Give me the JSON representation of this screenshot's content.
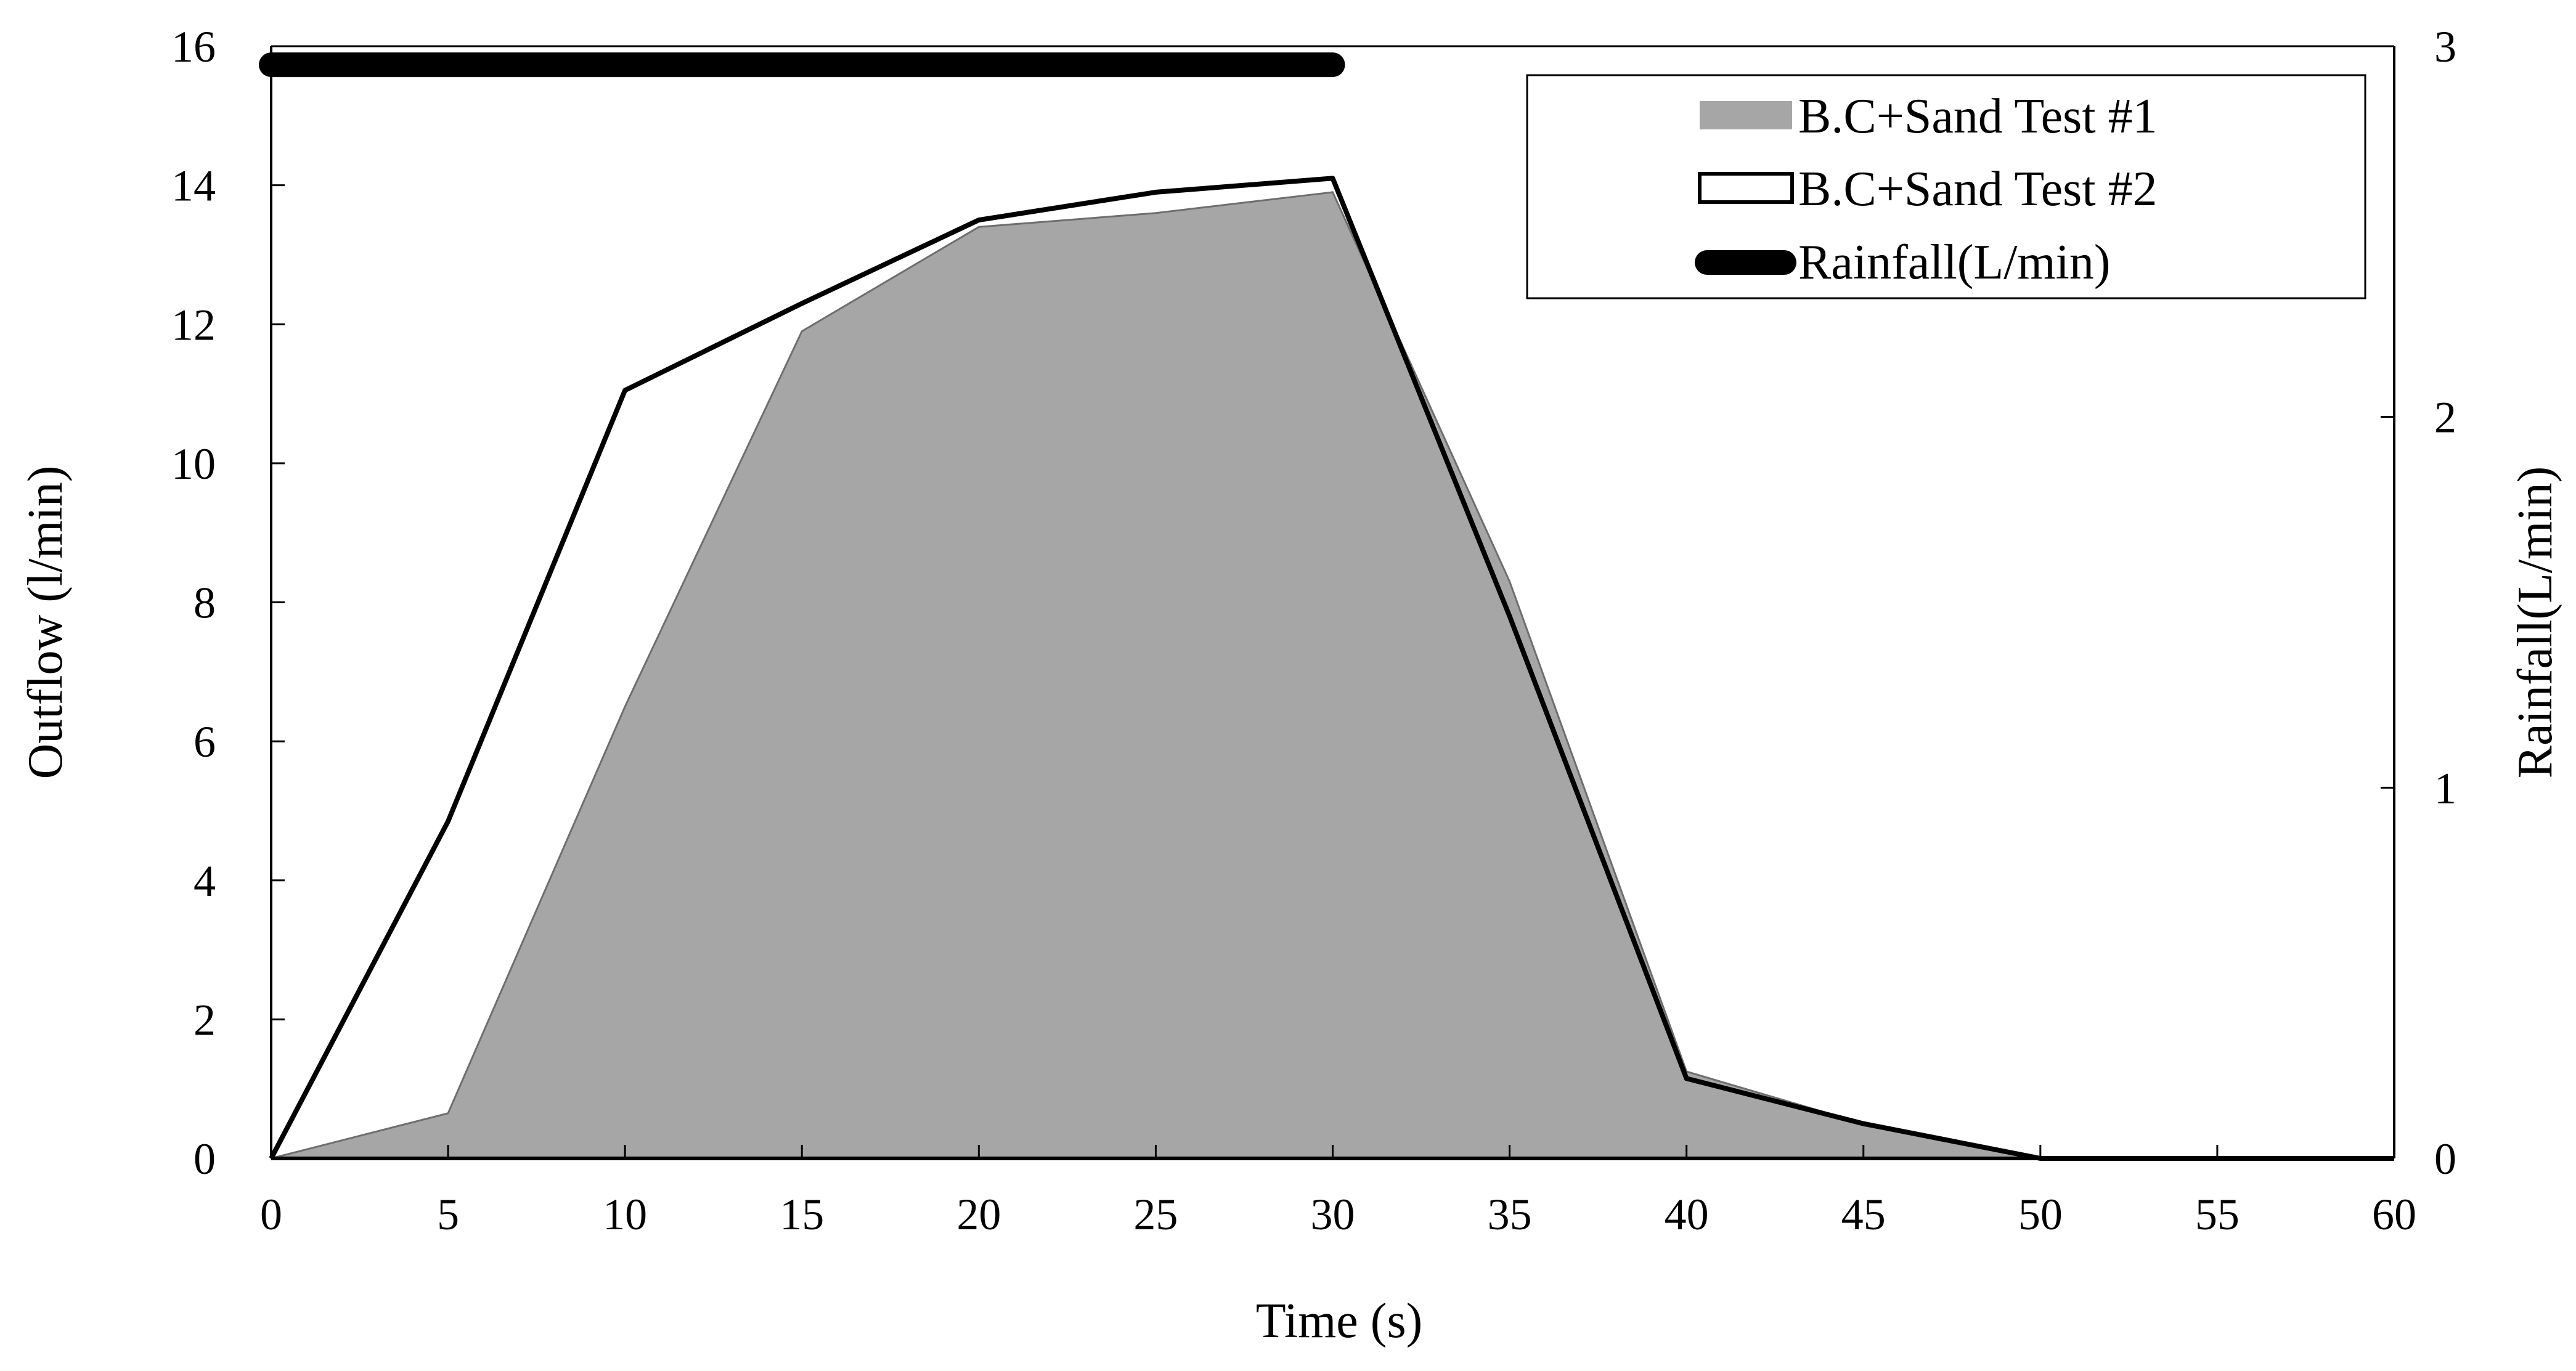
{
  "chart_data": {
    "type": "area",
    "title": "",
    "xlabel": "Time (s)",
    "ylabel": "Outflow (l/min)",
    "y2label": "Rainfall(L/min)",
    "xlim": [
      0,
      60
    ],
    "ylim": [
      0,
      16
    ],
    "y2lim": [
      0,
      3
    ],
    "x_ticks": [
      "0",
      "5",
      "10",
      "15",
      "20",
      "25",
      "30",
      "35",
      "40",
      "45",
      "50",
      "55",
      "60"
    ],
    "y_ticks": [
      "0",
      "2",
      "4",
      "6",
      "8",
      "10",
      "12",
      "14",
      "16"
    ],
    "y2_ticks": [
      "0",
      "1",
      "2",
      "3"
    ],
    "grid": false,
    "legend_position": "top-right",
    "series": [
      {
        "name": "B.C+Sand Test #1",
        "style": "filled-area",
        "axis": "left",
        "color": "#a6a6a6",
        "x": [
          0,
          5,
          10,
          15,
          20,
          25,
          30,
          35,
          40,
          45,
          50,
          55,
          60
        ],
        "values": [
          0,
          0.65,
          6.5,
          11.9,
          13.4,
          13.6,
          13.9,
          8.3,
          1.25,
          0.5,
          0,
          0,
          0
        ]
      },
      {
        "name": "B.C+Sand Test #2",
        "style": "line",
        "axis": "left",
        "color": "#000000",
        "x": [
          0,
          5,
          10,
          15,
          20,
          25,
          30,
          35,
          40,
          45,
          50,
          55,
          60
        ],
        "values": [
          0,
          4.85,
          11.05,
          12.3,
          13.5,
          13.9,
          14.1,
          7.8,
          1.15,
          0.5,
          0,
          0,
          0
        ]
      },
      {
        "name": "Rainfall(L/min)",
        "style": "thick-line",
        "axis": "right",
        "color": "#000000",
        "x": [
          0,
          30
        ],
        "values": [
          2.95,
          2.95
        ]
      }
    ]
  }
}
